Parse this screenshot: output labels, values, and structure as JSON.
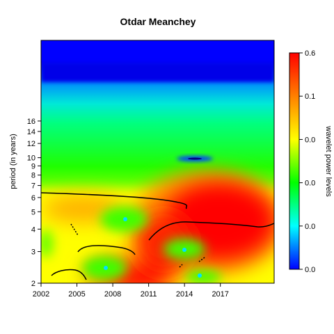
{
  "chart_data": {
    "type": "heatmap",
    "title": "Otdar Meanchey",
    "xlabel": "",
    "ylabel": "period (in years)",
    "x_ticks": [
      "2002",
      "2005",
      "2008",
      "2011",
      "2014",
      "2017"
    ],
    "x_range": [
      2002,
      2021.5
    ],
    "y_scale": "log2",
    "y_range": [
      2,
      45
    ],
    "y_ticks": [
      "2",
      "3",
      "4",
      "5",
      "6",
      "7",
      "8",
      "9",
      "10",
      "12",
      "14",
      "16"
    ],
    "colorbar": {
      "label": "wavelet power levels",
      "tick_labels": [
        "0.0",
        "0.0",
        "0.0",
        "0.0",
        "0.1",
        "0.6"
      ],
      "colors": [
        "#0000ff",
        "#00ffff",
        "#00ff00",
        "#ffff00",
        "#ff8000",
        "#ff0000"
      ]
    },
    "notable_features": {
      "high_power_band_period": [
        3,
        5.5
      ],
      "high_power_years": [
        2010,
        2020
      ],
      "power_ridge_period": [
        3.8,
        4.0
      ],
      "low_power_band_period": [
        22,
        45
      ]
    },
    "grid": false,
    "legend": "right"
  }
}
